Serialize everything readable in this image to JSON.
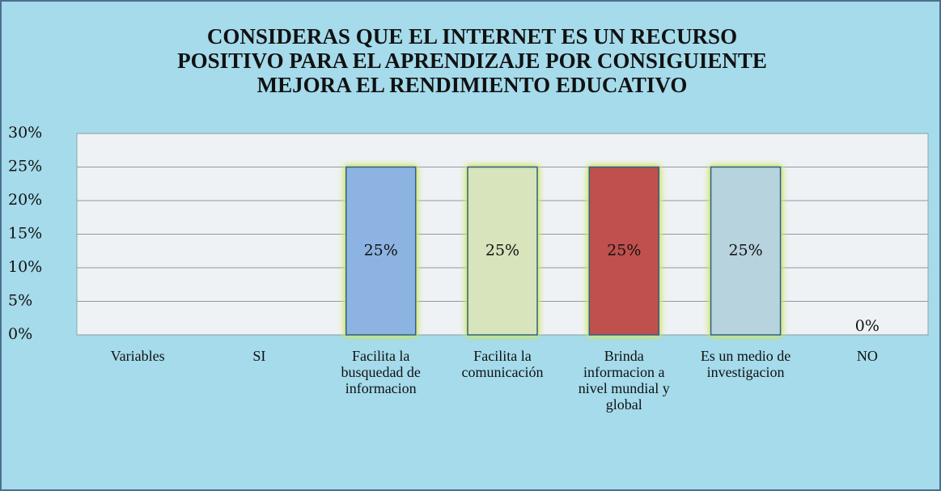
{
  "chart_data": {
    "type": "bar",
    "title": [
      "CONSIDERAS QUE EL INTERNET ES UN RECURSO",
      "POSITIVO PARA EL APRENDIZAJE POR CONSIGUIENTE",
      "MEJORA EL RENDIMIENTO EDUCATIVO"
    ],
    "categories": [
      "Variables",
      "SI",
      "Facilita la busquedad de informacion",
      "Facilita la comunicación",
      "Brinda informacion a nivel mundial y global",
      "Es un medio de investigacion",
      "NO"
    ],
    "values": [
      null,
      null,
      25,
      25,
      25,
      25,
      0
    ],
    "value_labels": [
      null,
      null,
      "25%",
      "25%",
      "25%",
      "25%",
      "0%"
    ],
    "colors": [
      null,
      null,
      "#8db3e2",
      "#d7e4bc",
      "#c0504d",
      "#b7d3de",
      null
    ],
    "ylim": [
      0,
      30
    ],
    "yticks": [
      {
        "value": 0,
        "label": "0%"
      },
      {
        "value": 5,
        "label": "5%"
      },
      {
        "value": 10,
        "label": "10%"
      },
      {
        "value": 15,
        "label": "15%"
      },
      {
        "value": 20,
        "label": "20%"
      },
      {
        "value": 25,
        "label": "25%"
      },
      {
        "value": 30,
        "label": "30%"
      }
    ],
    "grid": true
  }
}
